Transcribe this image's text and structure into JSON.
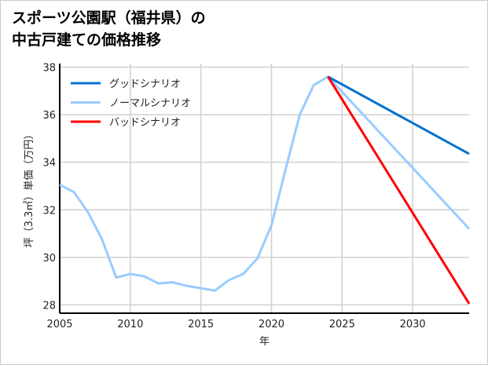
{
  "chart_data": {
    "type": "line",
    "title": [
      "スポーツ公園駅（福井県）の",
      "中古戸建ての価格推移"
    ],
    "xlabel": "年",
    "ylabel": "坪（3.3㎡）単価（万円）",
    "xlim": [
      2005,
      2034
    ],
    "ylim": [
      27.65,
      38.15
    ],
    "xticks": [
      2005,
      2010,
      2015,
      2020,
      2025,
      2030
    ],
    "yticks": [
      28,
      30,
      32,
      34,
      36,
      38
    ],
    "grid": true,
    "legend": "top-left",
    "series": [
      {
        "name": "グッドシナリオ",
        "color": "#0072CE",
        "x": [
          2024,
          2034
        ],
        "y": [
          37.6,
          34.35
        ]
      },
      {
        "name": "ノーマルシナリオ",
        "color": "#99CCFF",
        "x": [
          2005,
          2006,
          2007,
          2008,
          2009,
          2010,
          2011,
          2012,
          2013,
          2014,
          2015,
          2016,
          2017,
          2018,
          2019,
          2020,
          2021,
          2022,
          2023,
          2024,
          2034
        ],
        "y": [
          33.05,
          32.75,
          31.9,
          30.75,
          29.15,
          29.3,
          29.2,
          28.9,
          28.95,
          28.8,
          28.7,
          28.6,
          29.05,
          29.3,
          29.95,
          31.35,
          33.7,
          36.0,
          37.25,
          37.6,
          31.2
        ]
      },
      {
        "name": "バッドシナリオ",
        "color": "#FF0000",
        "x": [
          2024,
          2034
        ],
        "y": [
          37.6,
          28.05
        ]
      }
    ]
  }
}
